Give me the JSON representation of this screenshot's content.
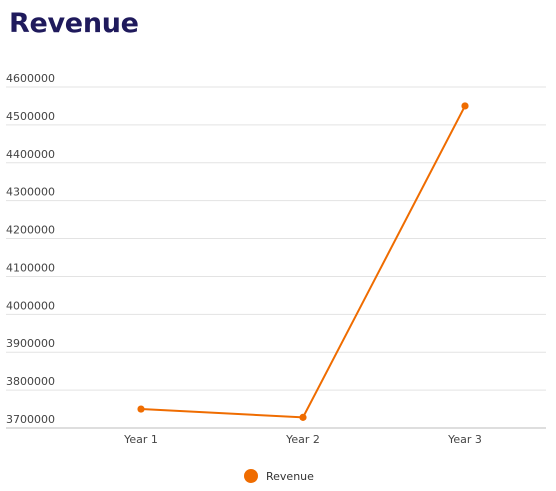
{
  "chart_data": {
    "type": "line",
    "title": "Revenue",
    "categories": [
      "Year 1",
      "Year 2",
      "Year 3"
    ],
    "series": [
      {
        "name": "Revenue",
        "values": [
          3750000,
          3728000,
          4550000
        ],
        "color": "#ef6c00"
      }
    ],
    "yticks": [
      "3700000",
      "3800000",
      "3900000",
      "4000000",
      "4100000",
      "4200000",
      "4300000",
      "4400000",
      "4500000",
      "4600000"
    ],
    "ylim": [
      3700000,
      4600000
    ],
    "grid": true,
    "legend_position": "bottom-center"
  }
}
